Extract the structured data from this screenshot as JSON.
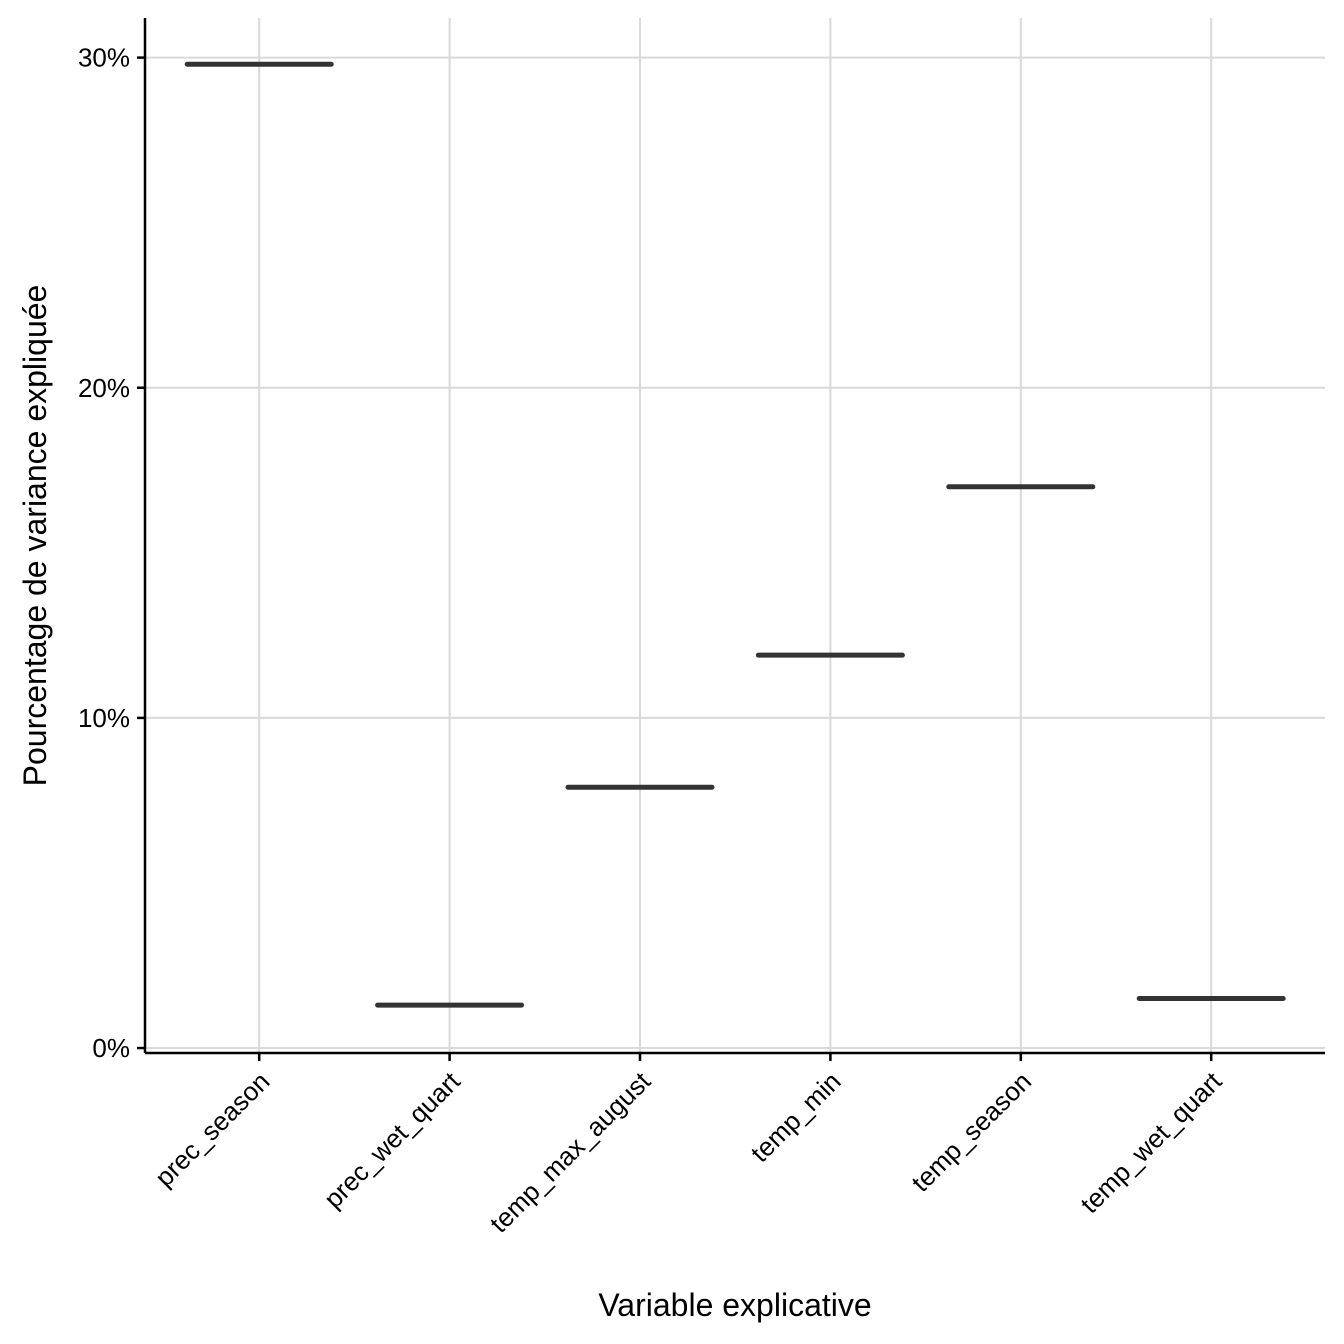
{
  "chart_data": {
    "type": "crossbar",
    "title": "",
    "xlabel": "Variable explicative",
    "ylabel": "Pourcentage de variance expliquée",
    "categories": [
      "prec_season",
      "prec_wet_quart",
      "temp_max_august",
      "temp_min",
      "temp_season",
      "temp_wet_quart"
    ],
    "values": [
      29.8,
      1.3,
      7.9,
      11.9,
      17.0,
      1.5
    ],
    "ylim": [
      -0.15,
      31.2
    ],
    "yticks": [
      0,
      10,
      20,
      30
    ],
    "ytick_labels": [
      "0%",
      "10%",
      "20%",
      "30%"
    ],
    "grid": true,
    "legend": "none",
    "mark_color": "#333333",
    "grid_color": "#d9d9d9"
  }
}
